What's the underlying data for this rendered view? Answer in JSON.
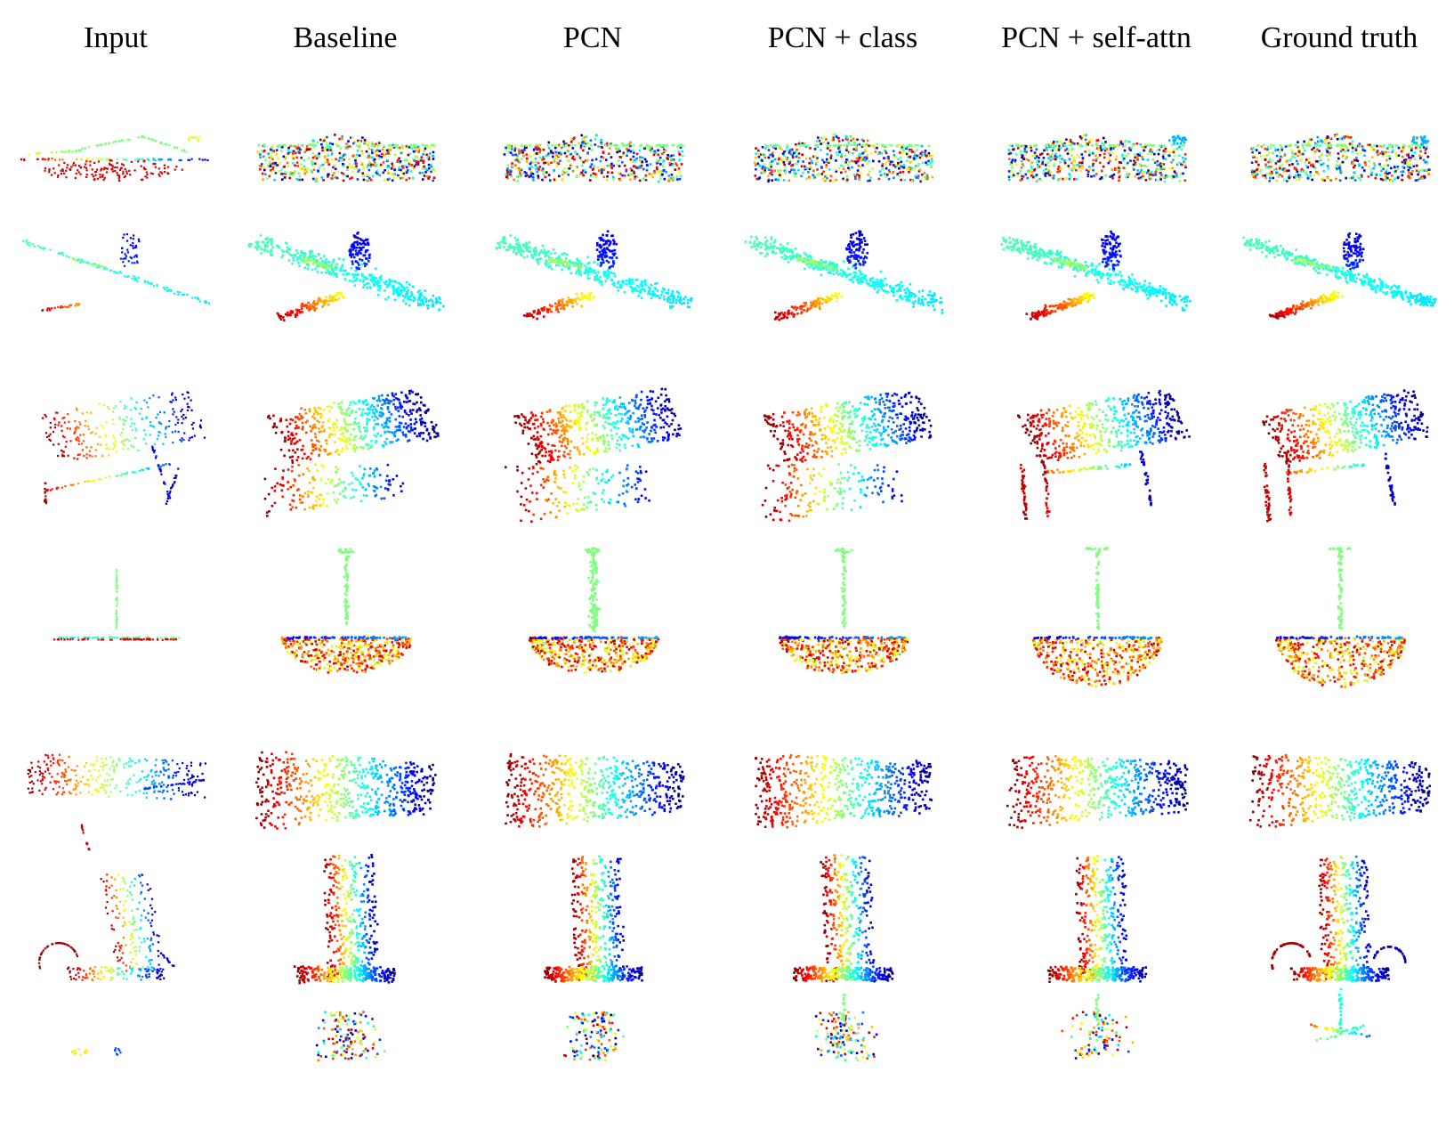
{
  "columns": [
    {
      "key": "input",
      "label": "Input"
    },
    {
      "key": "baseline",
      "label": "Baseline"
    },
    {
      "key": "pcn",
      "label": "PCN"
    },
    {
      "key": "pcn_class",
      "label": "PCN + class"
    },
    {
      "key": "pcn_selfattn",
      "label": "PCN + self-attn"
    },
    {
      "key": "gt",
      "label": "Ground truth"
    }
  ],
  "rows": [
    {
      "object": "car"
    },
    {
      "object": "airplane"
    },
    {
      "object": "table"
    },
    {
      "object": "lamp"
    },
    {
      "object": "sofa"
    },
    {
      "object": "chair"
    }
  ],
  "colormap": "jet",
  "colormap_stops": [
    "#00007f",
    "#0000ff",
    "#007fff",
    "#00ffff",
    "#7fff7f",
    "#ffff00",
    "#ff7f00",
    "#ff0000",
    "#7f0000"
  ]
}
